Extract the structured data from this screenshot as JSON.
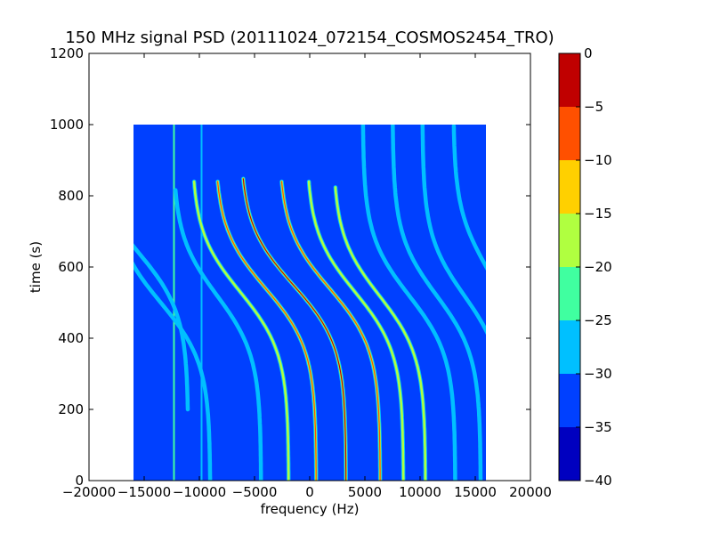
{
  "chart_data": {
    "type": "heatmap",
    "title": "150 MHz signal PSD (20111024_072154_COSMOS2454_TRO)",
    "xlabel": "frequency (Hz)",
    "ylabel": "time (s)",
    "xlim": [
      -20000,
      20000
    ],
    "ylim": [
      0,
      1200
    ],
    "x_ticks": [
      -20000,
      -15000,
      -10000,
      -5000,
      0,
      5000,
      10000,
      15000,
      20000
    ],
    "x_tick_labels": [
      "−20000",
      "−15000",
      "−10000",
      "−5000",
      "0",
      "5000",
      "10000",
      "15000",
      "20000"
    ],
    "y_ticks": [
      0,
      200,
      400,
      600,
      800,
      1000,
      1200
    ],
    "y_tick_labels": [
      "0",
      "200",
      "400",
      "600",
      "800",
      "1000",
      "1200"
    ],
    "data_extent": {
      "x": [
        -16000,
        16000
      ],
      "y": [
        0,
        1000
      ]
    },
    "background_level": -35,
    "colorbar": {
      "range": [
        -40,
        0
      ],
      "levels": [
        -40,
        -35,
        -30,
        -25,
        -20,
        -15,
        -10,
        -5,
        0
      ],
      "tick_labels": [
        "−40",
        "−35",
        "−30",
        "−25",
        "−20",
        "−15",
        "−10",
        "−5",
        "0"
      ],
      "colors": [
        "#0000c0",
        "#0040ff",
        "#00c0ff",
        "#40ffa0",
        "#b0ff40",
        "#ffd000",
        "#ff5000",
        "#c00000"
      ]
    },
    "vertical_lines": [
      {
        "x": -12300,
        "level": -25
      },
      {
        "x": -9800,
        "level": -30
      }
    ],
    "traces": [
      {
        "center_x": -1500,
        "time_mid": 550,
        "swing": 4800,
        "time_span": [
          0,
          850
        ],
        "peak_level": 0
      },
      {
        "center_x": -4000,
        "time_mid": 540,
        "swing": 4600,
        "time_span": [
          0,
          840
        ],
        "peak_level": -10
      },
      {
        "center_x": -6300,
        "time_mid": 530,
        "swing": 4400,
        "time_span": [
          0,
          840
        ],
        "peak_level": -15
      },
      {
        "center_x": 1800,
        "time_mid": 540,
        "swing": 4600,
        "time_span": [
          0,
          840
        ],
        "peak_level": -10
      },
      {
        "center_x": 4100,
        "time_mid": 530,
        "swing": 4400,
        "time_span": [
          0,
          840
        ],
        "peak_level": -15
      },
      {
        "center_x": 6300,
        "time_mid": 520,
        "swing": 4200,
        "time_span": [
          0,
          830
        ],
        "peak_level": -20
      },
      {
        "center_x": -8400,
        "time_mid": 520,
        "swing": 4000,
        "time_span": [
          0,
          820
        ],
        "peak_level": -25
      },
      {
        "center_x": -13500,
        "time_mid": 500,
        "swing": 4500,
        "time_span": [
          0,
          1000
        ],
        "peak_level": -25
      },
      {
        "center_x": -15500,
        "time_mid": 640,
        "swing": 4500,
        "time_span": [
          200,
          1000
        ],
        "peak_level": -25
      },
      {
        "center_x": 9000,
        "time_mid": 520,
        "swing": 4200,
        "time_span": [
          0,
          1000
        ],
        "peak_level": -25
      },
      {
        "center_x": 11500,
        "time_mid": 520,
        "swing": 4000,
        "time_span": [
          0,
          1000
        ],
        "peak_level": -25
      },
      {
        "center_x": 14000,
        "time_mid": 520,
        "swing": 3800,
        "time_span": [
          0,
          1000
        ],
        "peak_level": -25
      },
      {
        "center_x": 16000,
        "time_mid": 600,
        "swing": 3000,
        "time_span": [
          300,
          1000
        ],
        "peak_level": -25
      }
    ]
  }
}
